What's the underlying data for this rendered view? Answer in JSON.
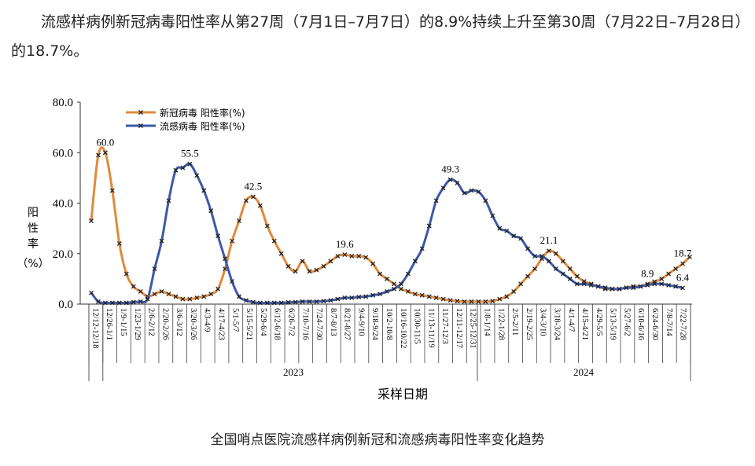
{
  "intro_text": "流感样病例新冠病毒阳性率从第27周（7月1日–7月7日）的8.9%持续上升至第30周（7月22日–7月28日）的18.7%。",
  "caption": "全国哨点医院流感样病例新冠和流感病毒阳性率变化趋势",
  "colors": {
    "covid": "#e08a3c",
    "flu": "#3d5aa8"
  },
  "chart_data": {
    "type": "line",
    "title": "",
    "xlabel": "采样日期",
    "ylabel": "阳性率（%）",
    "ylim": [
      0,
      80
    ],
    "yticks": [
      "0.0",
      "20.0",
      "40.0",
      "60.0",
      "80.0"
    ],
    "grid": false,
    "legend_position": "top-left",
    "x_tick_labels": [
      "12/12-12/18",
      "12/26-1/1",
      "1/9-1/15",
      "1/23-1/29",
      "2/6-2/12",
      "2/20-2/26",
      "3/6-3/12",
      "3/20-3/26",
      "4/3-4/9",
      "4/17-4/23",
      "5/1-5/7",
      "5/15-5/21",
      "5/29-6/4",
      "6/12-6/18",
      "6/26-7/2",
      "7/10-7/16",
      "7/24-7/30",
      "8/7-8/13",
      "8/21-8/27",
      "9/4-9/10",
      "9/18-9/24",
      "10/2-10/8",
      "10/16-10/22",
      "10/30-11/5",
      "11/13-11/19",
      "11/27-12/3",
      "12/11-12/17",
      "12/25-12/31",
      "1/8-1/14",
      "1/22-1/28",
      "2/5-2/11",
      "2/19-2/25",
      "3/4-3/10",
      "3/18-3/24",
      "4/1-4/7",
      "4/15-4/21",
      "4/29-5/5",
      "5/13-5/19",
      "5/27-6/2",
      "6/10-6/16",
      "6/24-6/30",
      "7/8-7/14",
      "7/22-7/28"
    ],
    "year_groups": [
      {
        "label": "2023"
      },
      {
        "label": "2024"
      }
    ],
    "series": [
      {
        "name": "新冠病毒 阳性率(%)",
        "color": "#e08a3c",
        "values": [
          33,
          59,
          60,
          45,
          24,
          12,
          7,
          5,
          3,
          4,
          5,
          4,
          3,
          2,
          2,
          2.5,
          3,
          4,
          6,
          14,
          25,
          33,
          41,
          42.5,
          39,
          31,
          25,
          20,
          15,
          13,
          17,
          13,
          13.5,
          15,
          17,
          19,
          19.6,
          19,
          19,
          18.5,
          16,
          12,
          10,
          8,
          6,
          5,
          4,
          3.5,
          3,
          2.5,
          2,
          1.5,
          1.2,
          1,
          1,
          1,
          1,
          1.2,
          2,
          3,
          5,
          8,
          11,
          14,
          18,
          21.1,
          20,
          17,
          14,
          11,
          9,
          8,
          7,
          6,
          6,
          6,
          6.5,
          7,
          7,
          8,
          8.9,
          10,
          12,
          14,
          16,
          18.7
        ]
      },
      {
        "name": "流感病毒 阳性率(%)",
        "color": "#3d5aa8",
        "values": [
          4.5,
          1,
          0.5,
          0.5,
          0.5,
          0.5,
          0.8,
          1,
          2,
          14,
          25,
          41,
          53,
          54,
          55.5,
          51,
          45,
          37,
          27,
          18,
          9,
          3,
          1.5,
          0.8,
          0.5,
          0.5,
          0.5,
          0.5,
          0.7,
          0.8,
          1,
          1,
          1,
          1.2,
          1.5,
          2,
          2.5,
          2.5,
          2.8,
          3,
          3.5,
          4,
          5,
          6,
          8,
          12,
          17,
          22,
          31,
          41,
          46,
          49.3,
          48,
          44,
          45,
          44.5,
          41,
          35,
          30,
          29,
          27,
          26,
          22,
          19,
          19,
          17,
          14,
          12,
          10,
          8,
          8,
          7.5,
          7,
          6.5,
          6,
          6,
          6.5,
          6.5,
          7,
          7.5,
          8,
          8,
          7.5,
          7,
          6.4
        ]
      }
    ],
    "annotations": [
      {
        "series": 0,
        "index": 2,
        "text": "60.0"
      },
      {
        "series": 1,
        "index": 14,
        "text": "55.5"
      },
      {
        "series": 0,
        "index": 23,
        "text": "42.5"
      },
      {
        "series": 0,
        "index": 36,
        "text": "19.6"
      },
      {
        "series": 1,
        "index": 51,
        "text": "49.3"
      },
      {
        "series": 0,
        "index": 65,
        "text": "21.1"
      },
      {
        "series": 0,
        "index": 79,
        "text": "8.9"
      },
      {
        "series": 0,
        "index": 84,
        "text": "18.7"
      },
      {
        "series": 1,
        "index": 84,
        "text": "6.4"
      }
    ]
  }
}
